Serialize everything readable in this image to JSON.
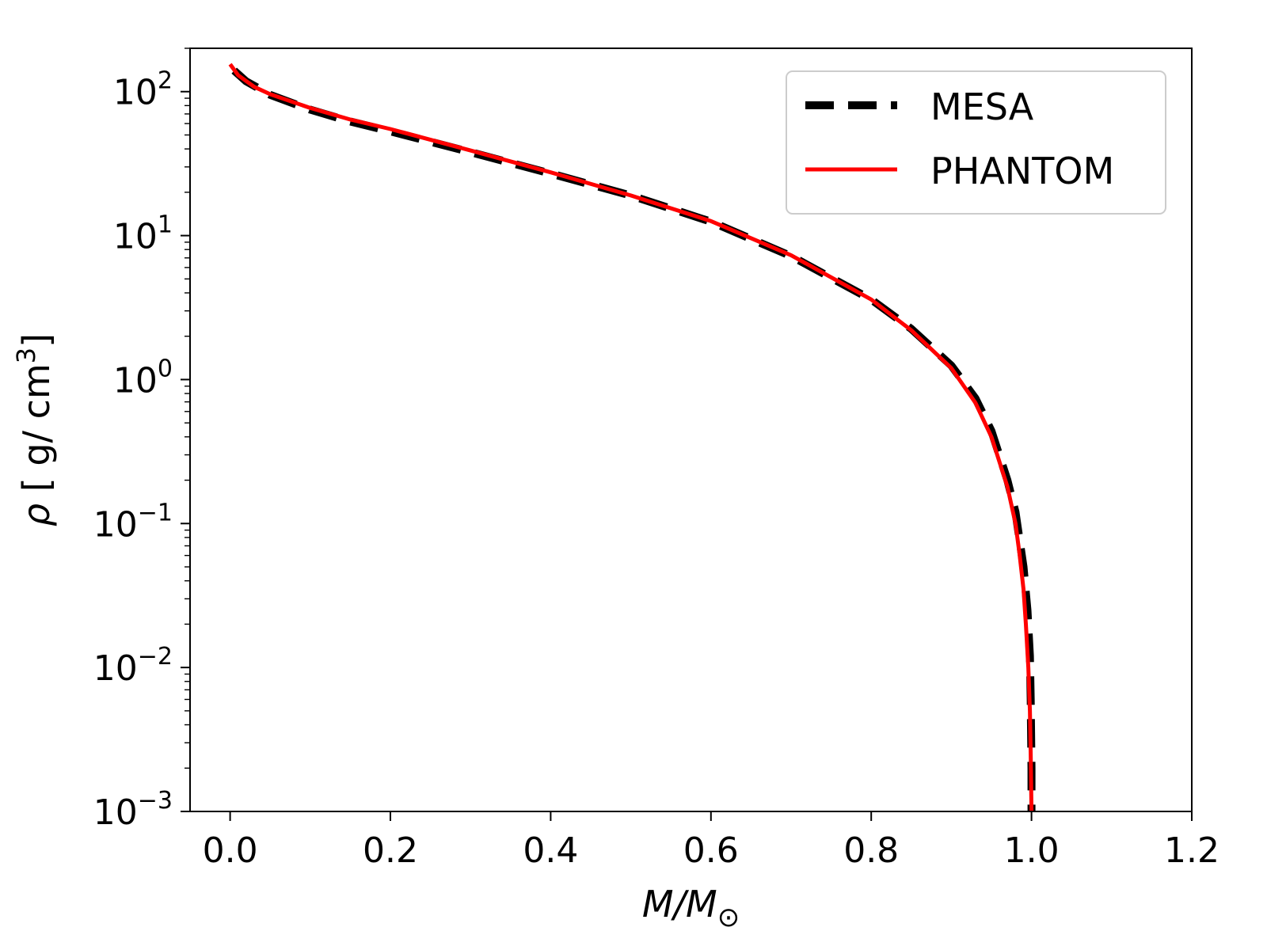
{
  "chart_data": {
    "type": "line",
    "title": "",
    "xlabel": "M/M_⊙",
    "xlabel_parts": {
      "main": "M/M",
      "sub": "⊙"
    },
    "ylabel": "ρ [ g/ cm³]",
    "ylabel_parts": {
      "rho": "ρ",
      "unit": " [ g/ cm",
      "exp": "3",
      "close": "]"
    },
    "xscale": "linear",
    "yscale": "log",
    "xlim": [
      -0.05,
      1.2
    ],
    "ylim": [
      0.001,
      200
    ],
    "x_ticks": [
      {
        "value": 0.0,
        "label": "0.0"
      },
      {
        "value": 0.2,
        "label": "0.2"
      },
      {
        "value": 0.4,
        "label": "0.4"
      },
      {
        "value": 0.6,
        "label": "0.6"
      },
      {
        "value": 0.8,
        "label": "0.8"
      },
      {
        "value": 1.0,
        "label": "1.0"
      },
      {
        "value": 1.2,
        "label": "1.2"
      }
    ],
    "y_ticks": [
      {
        "value": 100,
        "base": "10",
        "exp": "2"
      },
      {
        "value": 10,
        "base": "10",
        "exp": "1"
      },
      {
        "value": 1,
        "base": "10",
        "exp": "0"
      },
      {
        "value": 0.1,
        "base": "10",
        "exp": "−1"
      },
      {
        "value": 0.01,
        "base": "10",
        "exp": "−2"
      },
      {
        "value": 0.001,
        "base": "10",
        "exp": "−3"
      }
    ],
    "legend": {
      "position": "top-right",
      "entries": [
        "MESA",
        "PHANTOM"
      ]
    },
    "series": [
      {
        "name": "MESA",
        "color": "#000000",
        "style": "dashed",
        "x": [
          0.005,
          0.02,
          0.05,
          0.1,
          0.15,
          0.2,
          0.3,
          0.4,
          0.5,
          0.6,
          0.7,
          0.8,
          0.85,
          0.9,
          0.93,
          0.95,
          0.97,
          0.98,
          0.99,
          0.995,
          0.998,
          0.999,
          1.0,
          1.0
        ],
        "y": [
          140,
          118,
          95,
          75,
          62,
          53,
          38,
          27,
          19,
          12.5,
          7.2,
          3.6,
          2.25,
          1.25,
          0.74,
          0.44,
          0.2,
          0.12,
          0.05,
          0.025,
          0.012,
          0.006,
          0.002,
          0.001
        ]
      },
      {
        "name": "PHANTOM",
        "color": "#ff0000",
        "style": "solid",
        "x": [
          0.0,
          0.01,
          0.03,
          0.05,
          0.1,
          0.15,
          0.2,
          0.3,
          0.4,
          0.5,
          0.6,
          0.7,
          0.8,
          0.85,
          0.9,
          0.93,
          0.95,
          0.97,
          0.98,
          0.985,
          0.99,
          0.993,
          0.996,
          0.998,
          0.999,
          1.0
        ],
        "y": [
          155,
          130,
          108,
          96,
          77,
          64,
          55,
          39,
          27.5,
          19,
          12.6,
          7.3,
          3.6,
          2.2,
          1.2,
          0.69,
          0.4,
          0.18,
          0.1,
          0.062,
          0.035,
          0.02,
          0.01,
          0.005,
          0.0025,
          0.001
        ]
      }
    ]
  }
}
